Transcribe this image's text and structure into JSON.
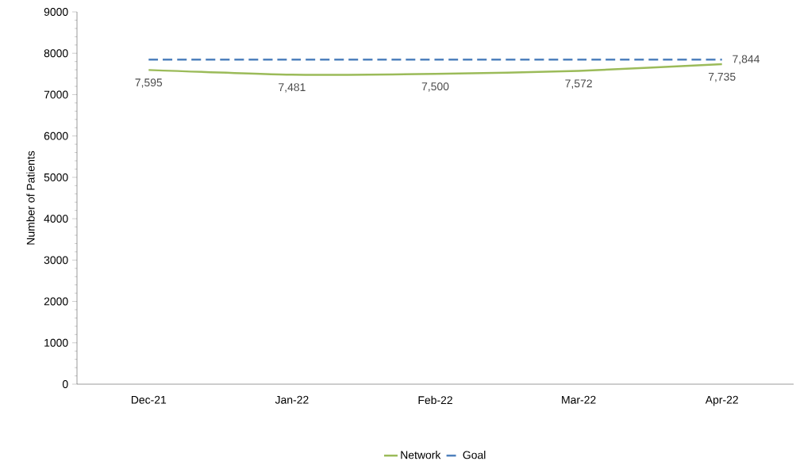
{
  "chart_data": {
    "type": "line",
    "ylabel": "Number of Patients",
    "categories": [
      "Dec-21",
      "Jan-22",
      "Feb-22",
      "Mar-22",
      "Apr-22"
    ],
    "series": [
      {
        "name": "Network",
        "color": "#9bbb59",
        "values": [
          7595,
          7481,
          7500,
          7572,
          7735
        ],
        "value_labels": [
          "7,595",
          "7,481",
          "7,500",
          "7,572",
          "7,735"
        ],
        "line_style": "solid"
      },
      {
        "name": "Goal",
        "color": "#4f81bd",
        "values": [
          7844,
          7844,
          7844,
          7844,
          7844
        ],
        "value_labels": [
          null,
          null,
          null,
          null,
          "7,844"
        ],
        "line_style": "dashed"
      }
    ],
    "ylim": [
      0,
      9000
    ],
    "yticks": [
      0,
      1000,
      2000,
      3000,
      4000,
      5000,
      6000,
      7000,
      8000,
      9000
    ],
    "grid": false,
    "legend": "bottom",
    "marker": "none"
  }
}
